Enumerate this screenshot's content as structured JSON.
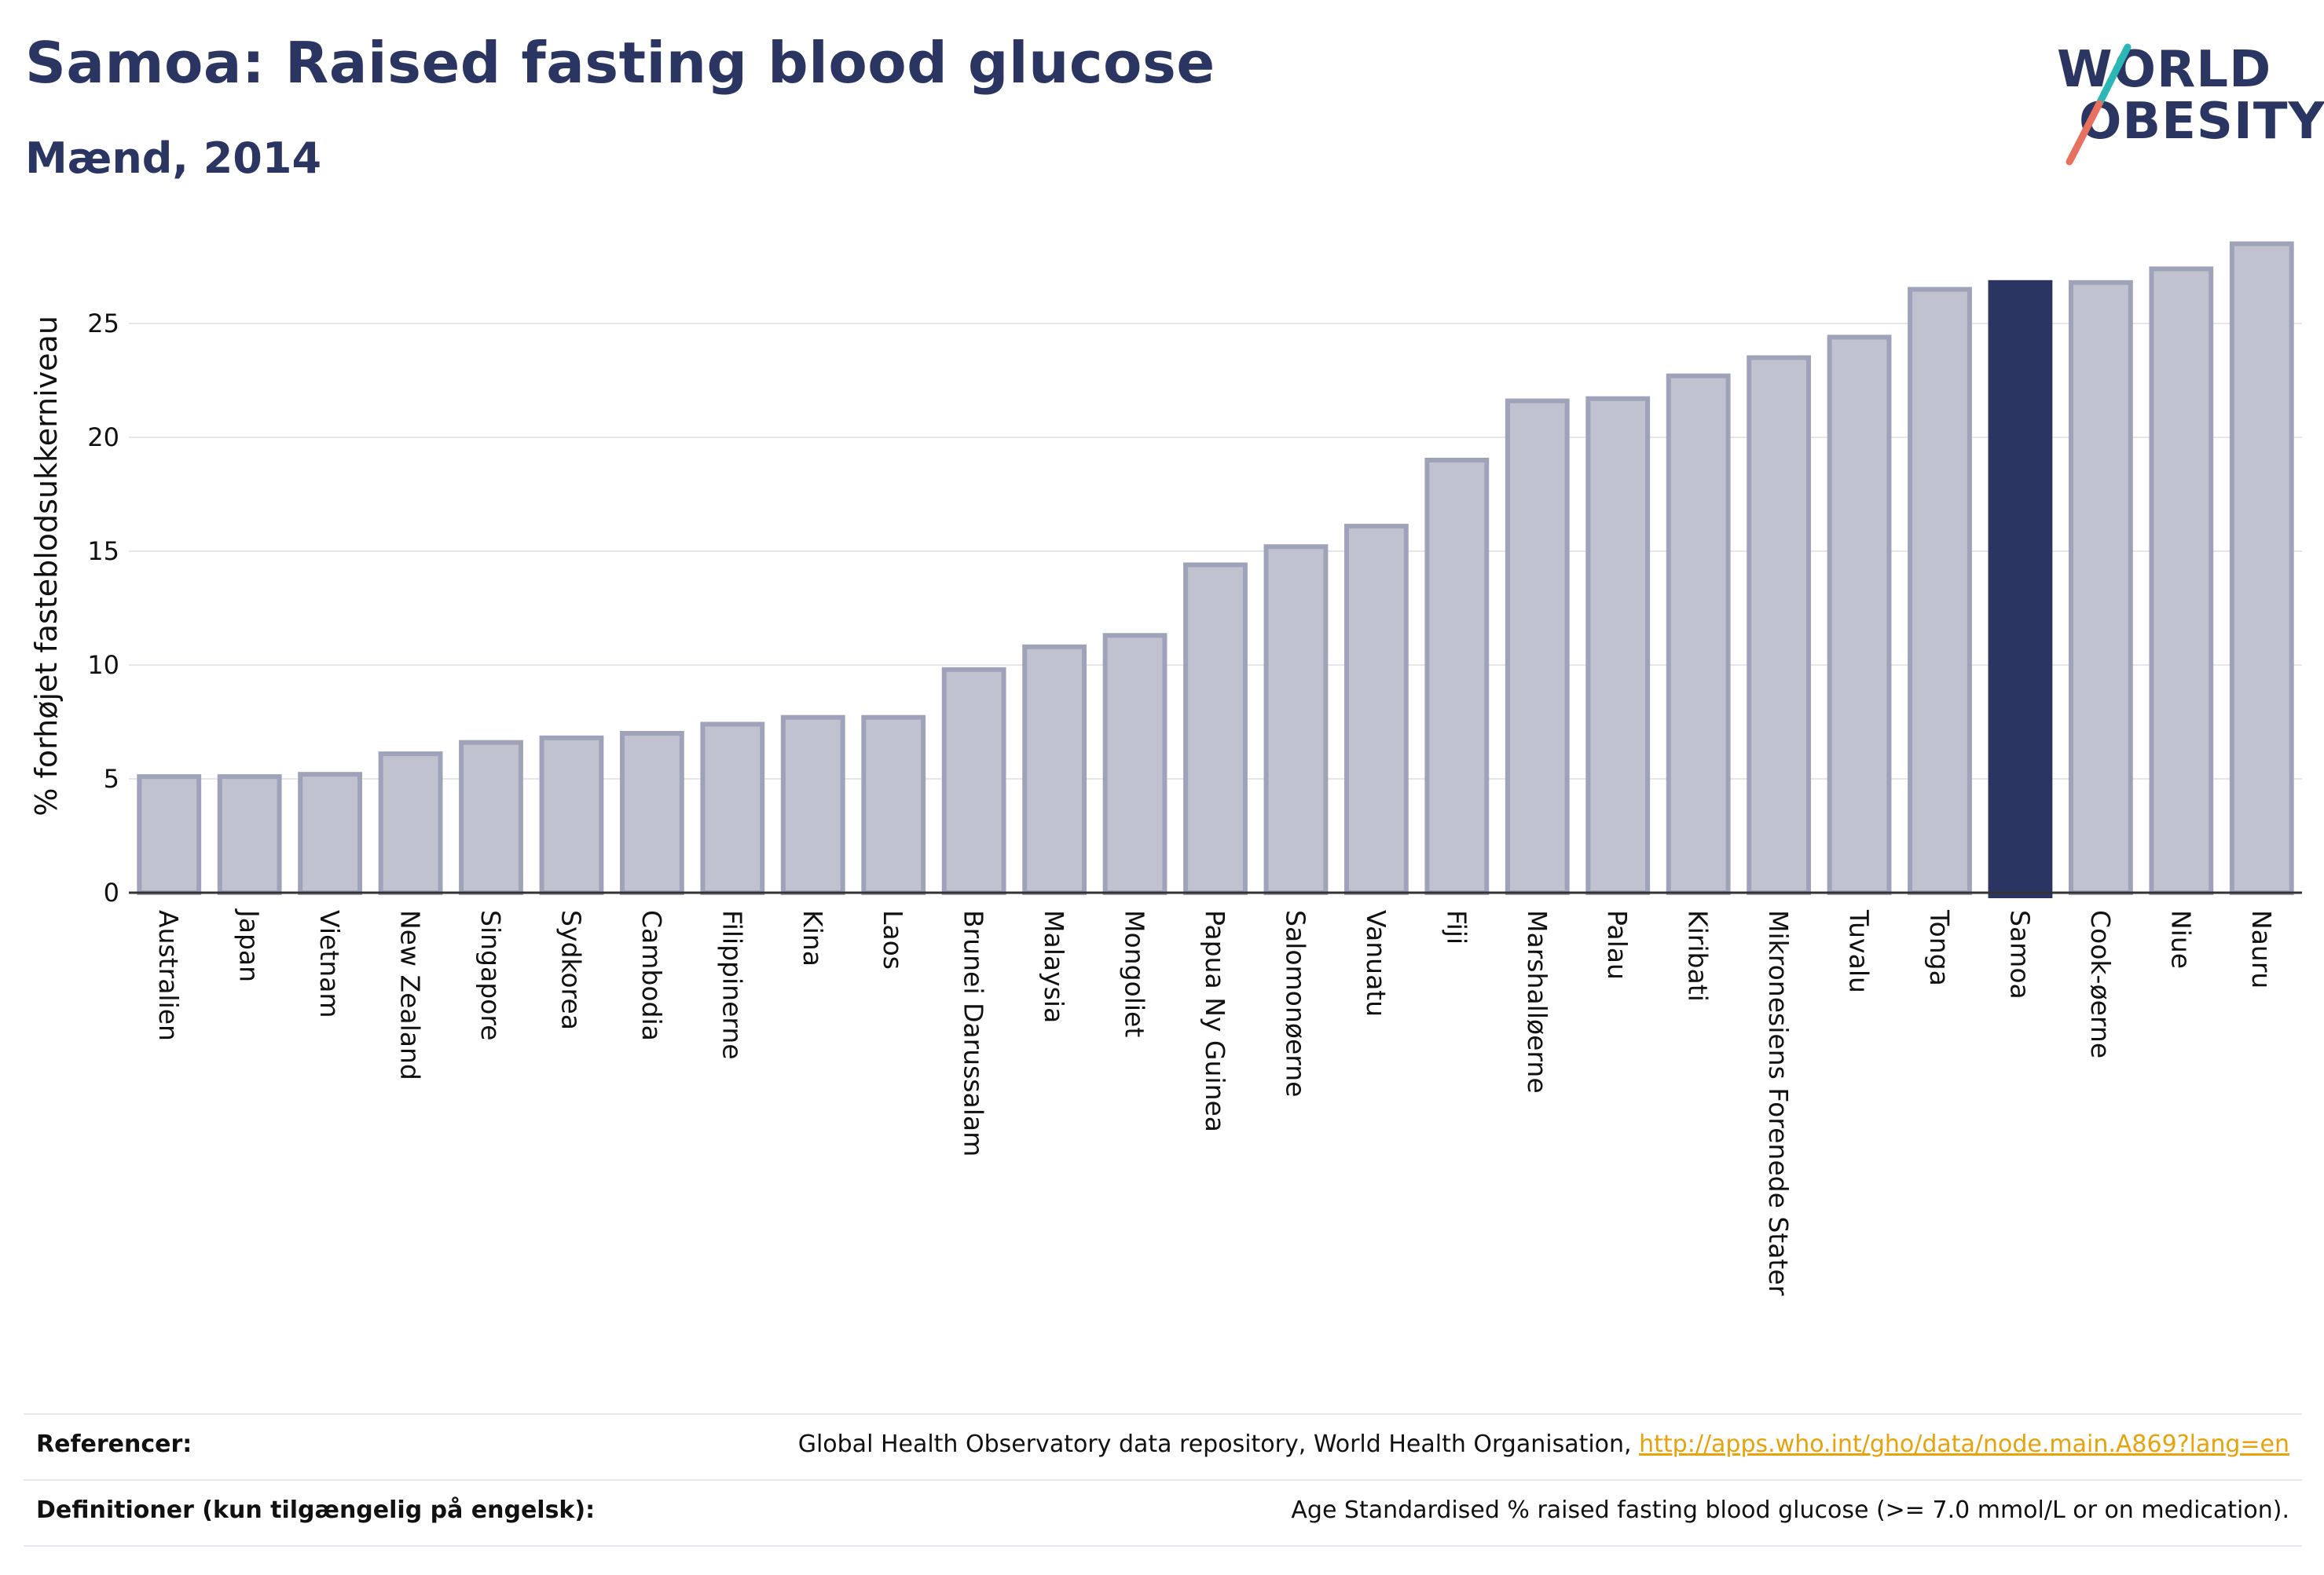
{
  "header": {
    "title": "Samoa: Raised fasting blood glucose",
    "subtitle": "Mænd, 2014"
  },
  "logo": {
    "line1": "WORLD",
    "line2": "OBESITY",
    "text_color": "#2a3561",
    "slash_colors": [
      "#2cb7b7",
      "#e8705e"
    ]
  },
  "colors": {
    "bar_default_fill": "#c0c3cf",
    "bar_default_stroke": "#9ea3b9",
    "bar_highlight": "#2a3561",
    "axis": "#333333",
    "grid": "#e6e7ec"
  },
  "chart_data": {
    "type": "bar",
    "ylabel": "% forhøjet fasteblodsukkerniveau",
    "xlabel": "",
    "ylim": [
      0,
      28.7
    ],
    "yticks": [
      0,
      5,
      10,
      15,
      20,
      25
    ],
    "grid": true,
    "highlight": "Samoa",
    "categories": [
      "Australien",
      "Japan",
      "Vietnam",
      "New Zealand",
      "Singapore",
      "Sydkorea",
      "Cambodia",
      "Filippinerne",
      "Kina",
      "Laos",
      "Brunei Darussalam",
      "Malaysia",
      "Mongoliet",
      "Papua Ny Guinea",
      "Salomonøerne",
      "Vanuatu",
      "Fiji",
      "Marshalløerne",
      "Palau",
      "Kiribati",
      "Mikronesiens Forenede Stater",
      "Tuvalu",
      "Tonga",
      "Samoa",
      "Cook-øerne",
      "Niue",
      "Nauru"
    ],
    "values": [
      5.1,
      5.1,
      5.2,
      6.1,
      6.6,
      6.8,
      7.0,
      7.4,
      7.7,
      7.7,
      9.8,
      10.8,
      11.3,
      14.4,
      15.2,
      16.1,
      19.0,
      21.6,
      21.7,
      22.7,
      23.5,
      24.4,
      26.5,
      26.8,
      26.8,
      27.4,
      28.5
    ]
  },
  "footer": {
    "references_label": "Referencer:",
    "references_text": "Global Health Observatory data repository, World Health Organisation,",
    "references_link": "http://apps.who.int/gho/data/node.main.A869?lang=en",
    "definitions_label": "Definitioner (kun tilgængelig på engelsk):",
    "definitions_text": "Age Standardised % raised fasting blood glucose (>= 7.0 mmol/L or on medication)."
  }
}
